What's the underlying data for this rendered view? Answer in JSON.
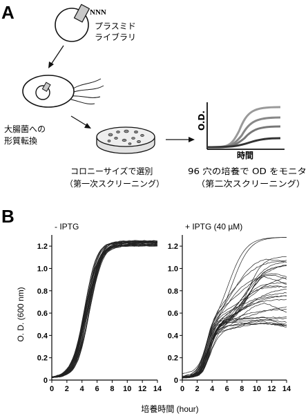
{
  "panel_a": {
    "letter": "A",
    "plasmid_label": "NNN",
    "library_line1": "プラスミド",
    "library_line2": "ライブラリ",
    "transform_line1": "大腸菌への",
    "transform_line2": "形質転換",
    "plot_ylabel": "O.D.",
    "plot_xlabel": "時間",
    "screen1_line1": "コロニーサイズで選別",
    "screen1_line2": "（第一次スクリーニング）",
    "screen2_line1": "96 穴の培養で OD をモニタ",
    "screen2_line2": "（第二次スクリーニング）"
  },
  "panel_b": {
    "letter": "B",
    "xlabel": "培養時間 (hour)",
    "ylabel": "O. D. (600 nm)",
    "colors": {
      "curve": "#222222",
      "axis": "#000000"
    }
  },
  "chart_data": [
    {
      "type": "line",
      "title": "- IPTG",
      "xlabel": "培養時間 (hour)",
      "ylabel": "O. D. (600 nm)",
      "xlim": [
        0,
        14
      ],
      "ylim": [
        0,
        1.3
      ],
      "xticks": [
        "0",
        "2",
        "4",
        "6",
        "8",
        "10",
        "12",
        "14"
      ],
      "yticks": [
        "0",
        "0.2",
        "0.4",
        "0.6",
        "0.8",
        "1.0",
        "1.2"
      ],
      "note": "about 30 overlapping logistic growth curves",
      "series": [
        {
          "values": [
            [
              0,
              0.02
            ],
            [
              2,
              0.06
            ],
            [
              3,
              0.2
            ],
            [
              4,
              0.45
            ],
            [
              5,
              0.72
            ],
            [
              6,
              0.93
            ],
            [
              7,
              1.06
            ],
            [
              8,
              1.14
            ],
            [
              9,
              1.19
            ],
            [
              10,
              1.22
            ],
            [
              11,
              1.24
            ],
            [
              12,
              1.23
            ],
            [
              13,
              1.22
            ],
            [
              14,
              1.21
            ]
          ]
        }
      ]
    },
    {
      "type": "line",
      "title": "+ IPTG (40 µM)",
      "xlabel": "培養時間 (hour)",
      "ylabel": "O. D. (600 nm)",
      "xlim": [
        0,
        14
      ],
      "ylim": [
        0,
        1.3
      ],
      "xticks": [
        "0",
        "2",
        "4",
        "6",
        "8",
        "10",
        "12",
        "14"
      ],
      "yticks": [
        "0",
        "0.2",
        "0.4",
        "0.6",
        "0.8",
        "1.0",
        "1.2"
      ],
      "note": "about 30 growth curves with widely spread final O.D.",
      "series": [
        {
          "values": [
            [
              0,
              0.03
            ],
            [
              2,
              0.08
            ],
            [
              3,
              0.22
            ],
            [
              4,
              0.42
            ],
            [
              5,
              0.55
            ],
            [
              6,
              0.62
            ],
            [
              8,
              0.72
            ],
            [
              10,
              0.8
            ],
            [
              12,
              0.85
            ],
            [
              14,
              0.88
            ]
          ]
        },
        {
          "values": [
            [
              0,
              0.03
            ],
            [
              2,
              0.08
            ],
            [
              3,
              0.25
            ],
            [
              4,
              0.45
            ],
            [
              6,
              0.8
            ],
            [
              8,
              1.1
            ],
            [
              10,
              1.24
            ],
            [
              12,
              1.27
            ],
            [
              14,
              1.26
            ]
          ]
        },
        {
          "values": [
            [
              0,
              0.03
            ],
            [
              2,
              0.08
            ],
            [
              3,
              0.2
            ],
            [
              4,
              0.38
            ],
            [
              6,
              0.42
            ],
            [
              8,
              0.45
            ],
            [
              10,
              0.47
            ],
            [
              12,
              0.48
            ],
            [
              14,
              0.48
            ]
          ]
        }
      ]
    }
  ]
}
